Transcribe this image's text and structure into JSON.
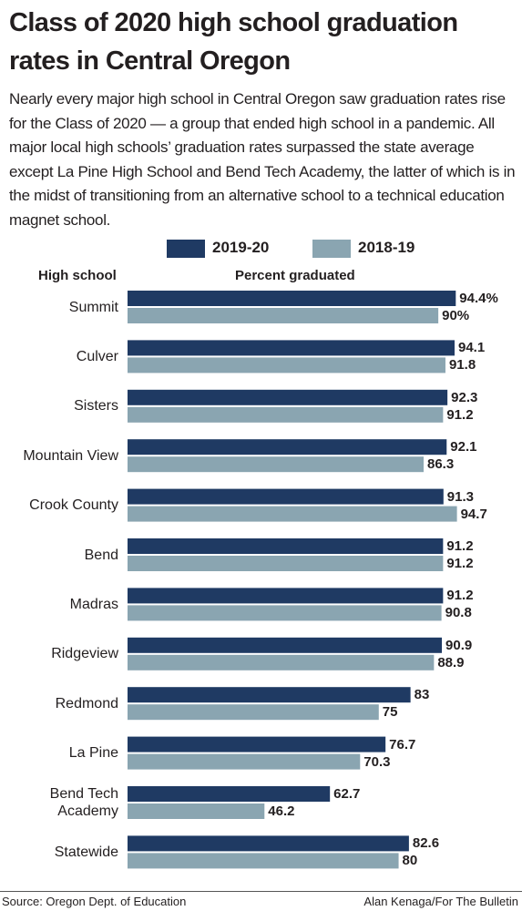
{
  "chart_data": {
    "type": "bar",
    "orientation": "horizontal",
    "title": "Class of 2020 high school graduation rates in Central Oregon",
    "subtitle": "Nearly every major high school in Central Oregon saw graduation rates rise for the Class of 2020 — a group that ended high school in a pandemic. All major local high schools’ graduation rates surpassed the state average except La Pine High School and Bend Tech Academy, the latter of which is in the midst of transitioning from an alternative school to a technical education magnet school.",
    "category_axis_label": "High school",
    "value_axis_label": "Percent graduated",
    "categories": [
      "Summit",
      "Culver",
      "Sisters",
      "Mountain View",
      "Crook County",
      "Bend",
      "Madras",
      "Ridgeview",
      "Redmond",
      "La Pine",
      "Bend Tech Academy",
      "Statewide"
    ],
    "series": [
      {
        "name": "2019-20",
        "color": "#1f3a63",
        "values": [
          94.4,
          94.1,
          92.3,
          92.1,
          91.3,
          91.2,
          91.2,
          90.9,
          83,
          76.7,
          62.7,
          82.6
        ],
        "value_labels": [
          "94.4%",
          "94.1",
          "92.3",
          "92.1",
          "91.3",
          "91.2",
          "91.2",
          "90.9",
          "83",
          "76.7",
          "62.7",
          "82.6"
        ]
      },
      {
        "name": "2018-19",
        "color": "#8aa5b1",
        "values": [
          90,
          91.8,
          91.2,
          86.3,
          94.7,
          91.2,
          90.8,
          88.9,
          75,
          70.3,
          46.2,
          80
        ],
        "value_labels": [
          "90%",
          "91.8",
          "91.2",
          "86.3",
          "94.7",
          "91.2",
          "90.8",
          "88.9",
          "75",
          "70.3",
          "46.2",
          "80"
        ]
      }
    ],
    "source": "Source: Oregon Dept. of Education",
    "credit": "Alan Kenaga/For The Bulletin"
  }
}
